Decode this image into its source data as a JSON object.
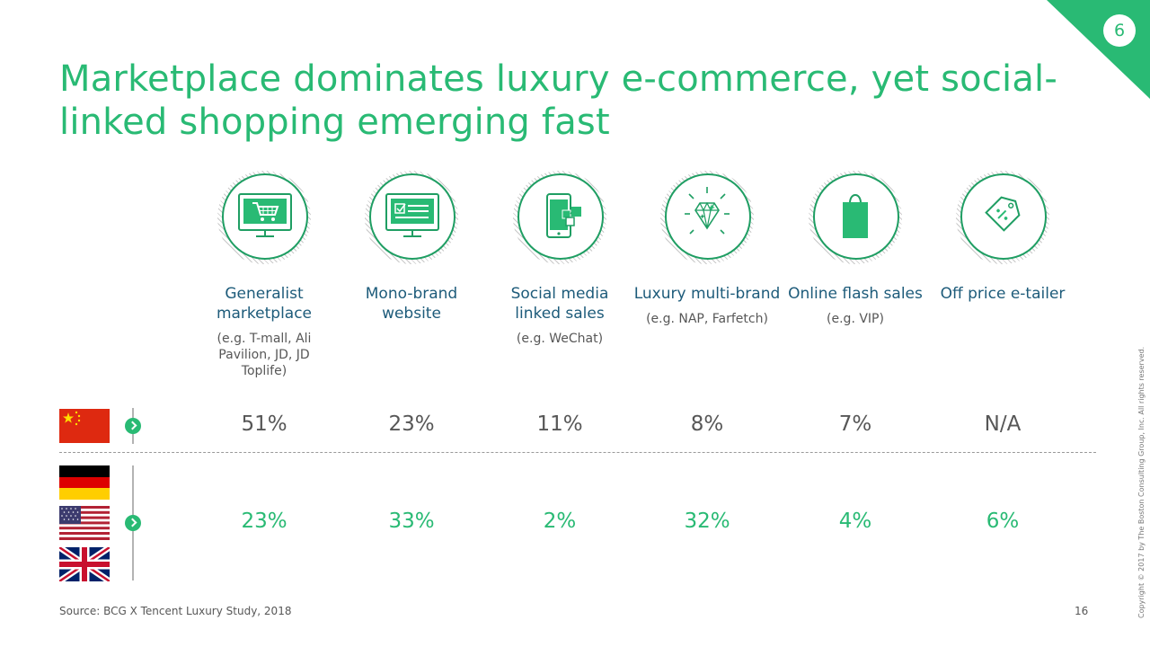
{
  "slide": {
    "number_badge": "6",
    "title": "Marketplace dominates luxury e-commerce, yet social-linked shopping emerging fast",
    "source": "Source: BCG X Tencent Luxury Study, 2018",
    "page_number": "16",
    "copyright": "Copyright © 2017 by The Boston Consulting Group, Inc. All rights reserved."
  },
  "colors": {
    "accent": "#29ba74",
    "heading_blue": "#1d5b7a",
    "text_grey": "#575757"
  },
  "channels": [
    {
      "icon": "monitor-cart-icon",
      "name": "Generalist marketplace",
      "example": "(e.g. T-mall, Ali Pavilion, JD, JD Toplife)"
    },
    {
      "icon": "monitor-checklist-icon",
      "name": "Mono-brand website",
      "example": ""
    },
    {
      "icon": "phone-social-icon",
      "name": "Social media linked sales",
      "example": "(e.g. WeChat)"
    },
    {
      "icon": "diamond-icon",
      "name": "Luxury multi-brand",
      "example": "(e.g. NAP, Farfetch)"
    },
    {
      "icon": "shopping-bag-icon",
      "name": "Online flash sales",
      "example": "(e.g. VIP)"
    },
    {
      "icon": "price-tag-icon",
      "name": "Off price e-tailer",
      "example": ""
    }
  ],
  "rows": {
    "china": {
      "flags": [
        "china-flag-icon"
      ],
      "values": [
        "51%",
        "23%",
        "11%",
        "8%",
        "7%",
        "N/A"
      ]
    },
    "western": {
      "flags": [
        "germany-flag-icon",
        "usa-flag-icon",
        "uk-flag-icon"
      ],
      "values": [
        "23%",
        "33%",
        "2%",
        "32%",
        "4%",
        "6%"
      ]
    }
  }
}
